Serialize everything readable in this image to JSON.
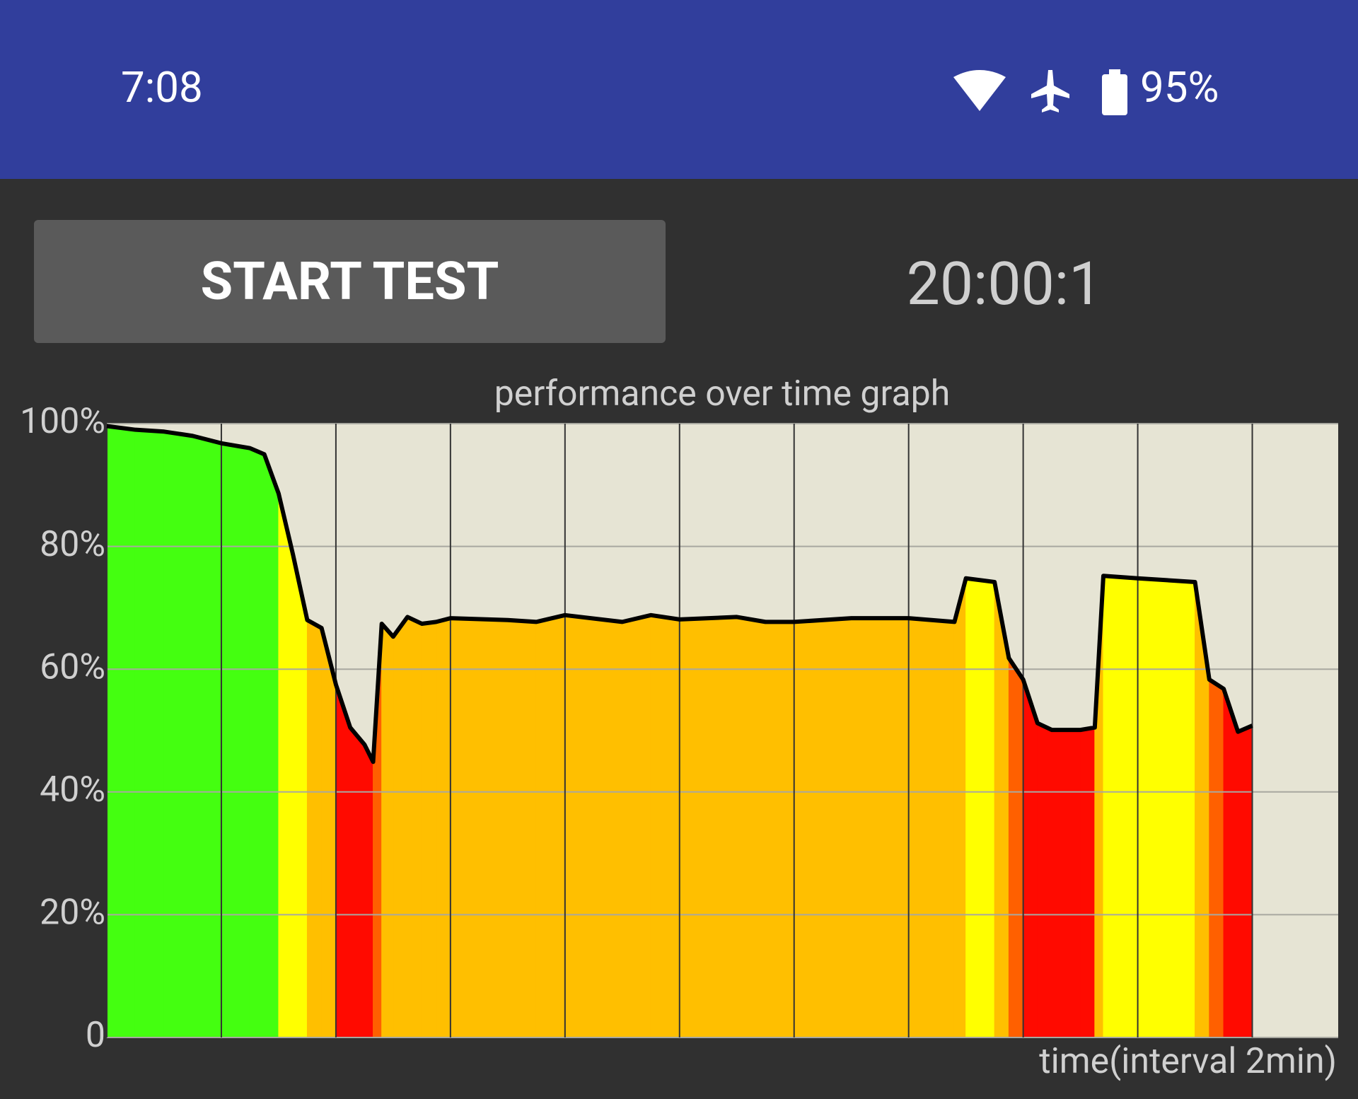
{
  "status_bar": {
    "time": "7:08",
    "battery": "95%"
  },
  "controls": {
    "button": "START TEST",
    "timer": "20:00:1"
  },
  "chart_data": {
    "type": "line",
    "title": "performance over time graph",
    "x_label": "time(interval 2min)",
    "x": [
      0,
      0.5,
      1,
      1.5,
      2,
      2.5,
      2.75,
      3,
      3.25,
      3.5,
      3.75,
      4,
      4.25,
      4.5,
      4.65,
      4.8,
      5,
      5.25,
      5.5,
      5.75,
      6,
      7,
      7.5,
      8,
      9,
      9.5,
      10,
      11,
      11.5,
      12,
      13,
      14,
      14.8,
      15,
      15.5,
      15.75,
      16,
      16.25,
      16.5,
      17,
      17.25,
      17.4,
      18,
      19,
      19.25,
      19.5,
      19.75,
      20
    ],
    "series": [
      {
        "color": "#000000",
        "values": [
          99.6,
          99,
          98.7,
          98,
          96.8,
          96,
          95,
          88.6,
          78.7,
          68,
          66.7,
          57.5,
          50.5,
          47.7,
          44.9,
          67.4,
          65.3,
          68.5,
          67.4,
          67.7,
          68.3,
          68,
          67.7,
          68.8,
          67.7,
          68.8,
          68.1,
          68.5,
          67.7,
          67.7,
          68.3,
          68.3,
          67.7,
          74.8,
          74.2,
          61.8,
          58.3,
          51.2,
          50.1,
          50.1,
          50.5,
          75.2,
          74.8,
          74.2,
          58.3,
          56.8,
          49.8,
          50.8
        ]
      }
    ],
    "xlim": [
      0,
      21.5
    ],
    "xticks": [
      0,
      2,
      4,
      6,
      8,
      10,
      12,
      14,
      16,
      18,
      20
    ],
    "ylim": [
      0,
      100
    ],
    "yticks": [
      0,
      {
        "value": 20,
        "label": "20%"
      },
      {
        "value": 40,
        "label": "40%"
      },
      {
        "value": 60,
        "label": "60%"
      },
      {
        "value": 80,
        "label": "80%"
      },
      {
        "value": 100,
        "label": "100%"
      }
    ],
    "grid": true,
    "background": "#e6e4d4"
  }
}
